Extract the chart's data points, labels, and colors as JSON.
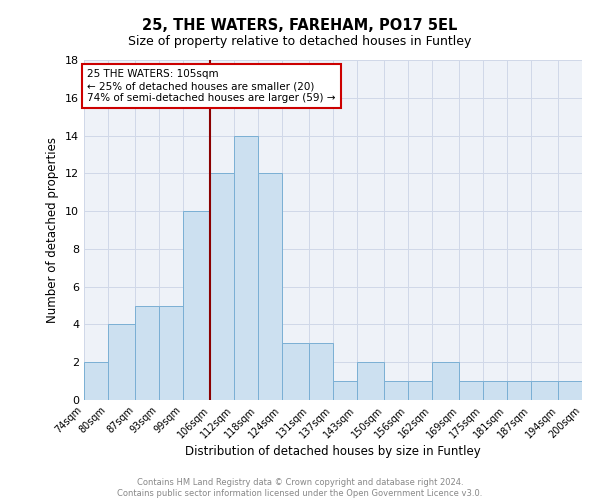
{
  "title1": "25, THE WATERS, FAREHAM, PO17 5EL",
  "title2": "Size of property relative to detached houses in Funtley",
  "xlabel": "Distribution of detached houses by size in Funtley",
  "ylabel": "Number of detached properties",
  "bins": [
    74,
    80,
    87,
    93,
    99,
    106,
    112,
    118,
    124,
    131,
    137,
    143,
    150,
    156,
    162,
    169,
    175,
    181,
    187,
    194,
    200
  ],
  "bin_labels": [
    "74sqm",
    "80sqm",
    "87sqm",
    "93sqm",
    "99sqm",
    "106sqm",
    "112sqm",
    "118sqm",
    "124sqm",
    "131sqm",
    "137sqm",
    "143sqm",
    "150sqm",
    "156sqm",
    "162sqm",
    "169sqm",
    "175sqm",
    "181sqm",
    "187sqm",
    "194sqm",
    "200sqm"
  ],
  "counts": [
    2,
    4,
    5,
    5,
    10,
    12,
    14,
    12,
    3,
    3,
    1,
    2,
    1,
    1,
    2,
    1,
    1,
    1,
    1,
    1
  ],
  "bar_color": "#cce0f0",
  "bar_edge_color": "#7aafd4",
  "property_line_x": 106,
  "property_line_color": "#8b0000",
  "annotation_line1": "25 THE WATERS: 105sqm",
  "annotation_line2": "← 25% of detached houses are smaller (20)",
  "annotation_line3": "74% of semi-detached houses are larger (59) →",
  "annotation_box_color": "#ffffff",
  "annotation_box_edge": "#cc0000",
  "ylim": [
    0,
    18
  ],
  "yticks": [
    0,
    2,
    4,
    6,
    8,
    10,
    12,
    14,
    16,
    18
  ],
  "footer_text": "Contains HM Land Registry data © Crown copyright and database right 2024.\nContains public sector information licensed under the Open Government Licence v3.0.",
  "grid_color": "#d0d8e8",
  "background_color": "#eef2f8"
}
